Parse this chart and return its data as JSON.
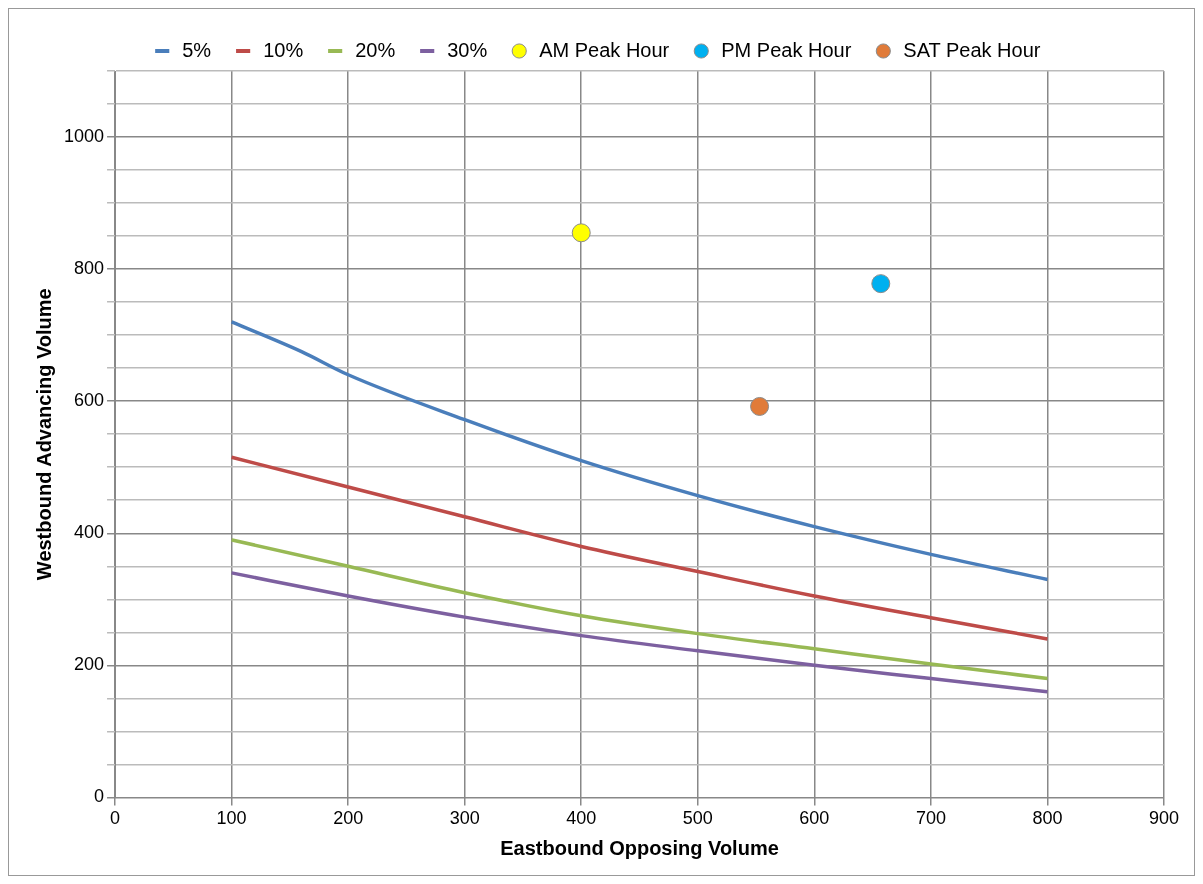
{
  "chart_data": {
    "type": "line",
    "xlabel": "Eastbound Opposing Volume",
    "ylabel": "Westbound Advancing Volume",
    "xlim": [
      0,
      900
    ],
    "xticks": [
      0,
      100,
      200,
      300,
      400,
      500,
      600,
      700,
      800,
      900
    ],
    "ylim": [
      0,
      1100
    ],
    "yticks": [
      0,
      {
        "value": 50,
        "label": null
      },
      {
        "value": 100,
        "label": null
      },
      {
        "value": 150,
        "label": null
      },
      200,
      {
        "value": 250,
        "label": null
      },
      {
        "value": 300,
        "label": null
      },
      {
        "value": 350,
        "label": null
      },
      400,
      {
        "value": 450,
        "label": null
      },
      {
        "value": 500,
        "label": null
      },
      {
        "value": 550,
        "label": null
      },
      600,
      {
        "value": 650,
        "label": null
      },
      {
        "value": 700,
        "label": null
      },
      {
        "value": 750,
        "label": null
      },
      800,
      {
        "value": 850,
        "label": null
      },
      {
        "value": 900,
        "label": null
      },
      {
        "value": 950,
        "label": null
      },
      1000,
      {
        "value": 1050,
        "label": null
      },
      {
        "value": 1100,
        "label": null
      }
    ],
    "grid": true,
    "legend": "top",
    "series": [
      {
        "name": "5%",
        "type": "line",
        "marker": "none",
        "color": "#4a7ebb",
        "x": [
          100,
          160,
          200,
          300,
          400,
          500,
          600,
          700,
          800
        ],
        "values": [
          720,
          675,
          640,
          572,
          510,
          457,
          410,
          368,
          330
        ]
      },
      {
        "name": "10%",
        "type": "line",
        "marker": "none",
        "color": "#be4b48",
        "x": [
          100,
          200,
          300,
          400,
          500,
          600,
          700,
          800
        ],
        "values": [
          515,
          470,
          425,
          380,
          342,
          305,
          272,
          240
        ]
      },
      {
        "name": "20%",
        "type": "line",
        "marker": "none",
        "color": "#98b954",
        "x": [
          100,
          200,
          300,
          400,
          500,
          600,
          700,
          800
        ],
        "values": [
          390,
          350,
          310,
          275,
          248,
          225,
          202,
          180
        ]
      },
      {
        "name": "30%",
        "type": "line",
        "marker": "none",
        "color": "#7d60a0",
        "x": [
          100,
          200,
          300,
          400,
          500,
          600,
          700,
          800
        ],
        "values": [
          340,
          305,
          273,
          245,
          222,
          200,
          180,
          160
        ]
      },
      {
        "name": "AM Peak Hour",
        "type": "scatter",
        "marker": "circle",
        "color": "#ffff00",
        "x": [
          400
        ],
        "values": [
          855
        ]
      },
      {
        "name": "PM Peak Hour",
        "type": "scatter",
        "marker": "circle",
        "color": "#00b0f0",
        "x": [
          657
        ],
        "values": [
          778
        ]
      },
      {
        "name": "SAT Peak Hour",
        "type": "scatter",
        "marker": "circle",
        "color": "#e07b39",
        "x": [
          553
        ],
        "values": [
          592
        ]
      }
    ]
  }
}
